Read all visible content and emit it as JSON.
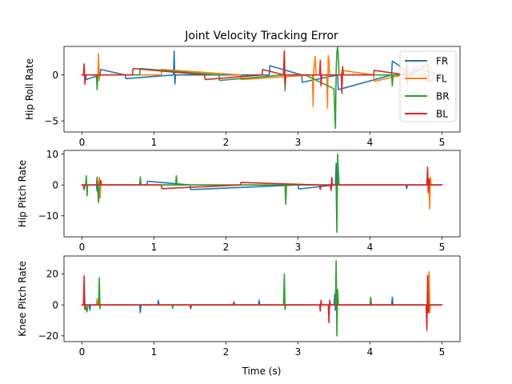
{
  "chart_data": {
    "type": "line",
    "title": "Joint Velocity Tracking Error",
    "xlabel": "Time (s)",
    "xlim": [
      -0.25,
      5.25
    ],
    "xticks": [
      0,
      1,
      2,
      3,
      4,
      5
    ],
    "legend": {
      "placement": "top-right",
      "entries": [
        "FR",
        "FL",
        "BR",
        "BL"
      ]
    },
    "colors": {
      "FR": "#1f77b4",
      "FL": "#ff7f0e",
      "BR": "#2ca02c",
      "BL": "#d62728"
    },
    "panels": [
      {
        "ylabel": "Hip Roll Rate",
        "ylim": [
          -6.2,
          3.1
        ],
        "yticks": [
          -5,
          0
        ],
        "series": [
          {
            "name": "FR",
            "x": [
              0,
              0.05,
              0.06,
              0.25,
              0.26,
              0.6,
              0.61,
              1.27,
              1.28,
              1.29,
              1.3,
              2.6,
              2.61,
              3.05,
              3.06,
              3.55,
              3.56,
              4.3,
              4.31,
              4.6,
              4.61,
              5
            ],
            "y": [
              0,
              0,
              -0.5,
              0,
              0.6,
              0,
              -0.4,
              0,
              2.6,
              -1.0,
              0,
              0,
              1.0,
              0,
              -0.8,
              0,
              -1.6,
              0,
              1.5,
              0,
              0.8,
              0
            ]
          },
          {
            "name": "FL",
            "x": [
              0,
              0.22,
              0.23,
              0.24,
              0.25,
              1.1,
              1.11,
              2.2,
              2.21,
              3.2,
              3.21,
              3.22,
              3.24,
              3.25,
              3.4,
              3.41,
              3.42,
              3.43,
              3.44,
              3.6,
              3.61,
              4.05,
              4.06,
              4.45,
              4.46,
              4.5,
              4.6,
              4.8,
              4.81,
              5
            ],
            "y": [
              0,
              0,
              2.3,
              -0.6,
              0,
              0,
              0.6,
              0,
              -0.5,
              0,
              -3.4,
              0.6,
              2.0,
              0,
              0,
              -3.6,
              2.1,
              1.6,
              0,
              0,
              0.5,
              0,
              -0.7,
              0,
              0.5,
              -0.5,
              0.6,
              0,
              -0.8,
              0
            ]
          },
          {
            "name": "BR",
            "x": [
              0,
              0.2,
              0.21,
              0.22,
              0.8,
              0.81,
              1.9,
              1.91,
              2.8,
              2.81,
              2.82,
              2.83,
              2.84,
              3.1,
              3.5,
              3.51,
              3.52,
              3.53,
              3.54,
              3.55,
              3.56,
              3.57,
              3.6,
              4.3,
              4.31,
              4.32,
              5
            ],
            "y": [
              0,
              0,
              -1.6,
              0,
              0,
              0.7,
              0,
              -0.6,
              0,
              2.4,
              -1.7,
              0,
              0,
              0,
              -1.5,
              -4.0,
              -5.8,
              0.5,
              2.5,
              3.0,
              2.0,
              0,
              0,
              0,
              -1.2,
              0,
              0
            ]
          },
          {
            "name": "BL",
            "x": [
              0,
              0.02,
              0.03,
              0.04,
              0.05,
              0.7,
              0.71,
              1.7,
              1.71,
              2.5,
              2.51,
              2.8,
              2.81,
              2.82,
              2.83,
              3.3,
              3.31,
              3.32,
              3.33,
              3.6,
              3.61,
              3.62,
              3.63,
              4.05,
              4.06,
              4.5,
              4.51,
              4.52,
              4.53,
              4.55,
              4.81,
              4.82,
              5
            ],
            "y": [
              0,
              0,
              1.2,
              -1.0,
              0,
              0,
              0.7,
              0,
              -0.5,
              0,
              0.6,
              0,
              2.6,
              -1.2,
              0,
              0,
              1.6,
              -1.2,
              0,
              0,
              -2.0,
              0.9,
              0,
              0,
              0.5,
              0,
              1.9,
              -1.0,
              0,
              0,
              1.2,
              -0.7,
              0
            ]
          }
        ]
      },
      {
        "ylabel": "Hip Pitch Rate",
        "ylim": [
          -16.8,
          11.2
        ],
        "yticks": [
          -10,
          0,
          10
        ],
        "series": [
          {
            "name": "FR",
            "x": [
              0,
              0.2,
              0.21,
              0.22,
              0.3,
              0.9,
              0.91,
              1.5,
              1.51,
              3.0,
              3.01,
              3.52,
              3.53,
              3.54,
              3.55,
              3.56,
              4.5,
              4.51,
              4.52,
              5
            ],
            "y": [
              0,
              0,
              -2.0,
              0,
              0,
              0,
              1.2,
              0,
              -1.5,
              0,
              -1.3,
              0,
              7.0,
              -4.0,
              2.0,
              0,
              0,
              -1.2,
              0,
              0
            ]
          },
          {
            "name": "FL",
            "x": [
              0,
              0.23,
              0.24,
              0.25,
              0.26,
              4.82,
              4.83,
              4.84,
              4.85,
              5
            ],
            "y": [
              0,
              0,
              2.4,
              -4.3,
              0,
              0,
              -7.8,
              2.5,
              0,
              0
            ]
          },
          {
            "name": "BR",
            "x": [
              0,
              0.05,
              0.06,
              0.07,
              0.08,
              0.2,
              0.21,
              0.22,
              0.23,
              0.24,
              0.8,
              0.81,
              0.82,
              1.3,
              1.31,
              1.32,
              2.82,
              2.83,
              2.84,
              3.53,
              3.54,
              3.55,
              3.56,
              3.57,
              5
            ],
            "y": [
              0,
              0,
              3.0,
              -3.5,
              0,
              0,
              2.5,
              -1.5,
              -5.7,
              0,
              0,
              2.6,
              0,
              0,
              3.0,
              0,
              0,
              -6.3,
              0,
              0,
              -15.3,
              10.0,
              5.0,
              0,
              0
            ]
          },
          {
            "name": "BL",
            "x": [
              0,
              0.02,
              0.03,
              0.04,
              0.25,
              0.26,
              0.27,
              1.1,
              1.11,
              2.2,
              2.21,
              3.3,
              3.31,
              3.32,
              3.45,
              3.46,
              3.47,
              3.48,
              4.79,
              4.8,
              4.81,
              4.82,
              4.83,
              5
            ],
            "y": [
              0,
              0,
              -1.5,
              0,
              0,
              1.5,
              0,
              0,
              -1.2,
              0,
              0.8,
              0,
              -1.5,
              0,
              0,
              -1.8,
              2.4,
              0,
              0,
              5.8,
              -2.5,
              2.0,
              0,
              0
            ]
          }
        ]
      },
      {
        "ylabel": "Knee Pitch Rate",
        "ylim": [
          -23.7,
          31.6
        ],
        "yticks": [
          -20,
          0,
          20
        ],
        "series": [
          {
            "name": "FR",
            "x": [
              0,
              0.1,
              0.11,
              0.12,
              0.8,
              0.81,
              0.82,
              1.05,
              1.06,
              1.07,
              2.45,
              2.46,
              2.47,
              3.5,
              3.51,
              3.52,
              3.53,
              4.3,
              4.31,
              4.32,
              4.8,
              4.81,
              4.82,
              4.83,
              5
            ],
            "y": [
              0,
              0,
              -3.5,
              0,
              0,
              -5.0,
              0,
              0,
              3.0,
              0,
              0,
              3.0,
              0,
              0,
              7.0,
              -3.5,
              0,
              0,
              5.0,
              0,
              0,
              -5.0,
              20.0,
              0,
              0
            ]
          },
          {
            "name": "FL",
            "x": [
              0,
              0.2,
              0.21,
              0.22,
              4.81,
              4.82,
              4.83,
              4.84,
              5
            ],
            "y": [
              0,
              0,
              4.0,
              0,
              0,
              21.5,
              -5.0,
              0,
              0
            ]
          },
          {
            "name": "BR",
            "x": [
              0,
              0.05,
              0.06,
              0.07,
              0.08,
              0.23,
              0.24,
              0.25,
              0.26,
              1.25,
              1.26,
              1.27,
              2.8,
              2.81,
              2.82,
              2.83,
              3.52,
              3.53,
              3.54,
              3.55,
              3.56,
              3.57,
              4.0,
              4.01,
              4.02,
              5
            ],
            "y": [
              0,
              0,
              -3.0,
              -4.5,
              0,
              0,
              17.5,
              -2.5,
              0,
              0,
              -2.0,
              0,
              0,
              20.0,
              -3.0,
              0,
              0,
              28.5,
              -20.0,
              10.0,
              0,
              0,
              0,
              5.0,
              0,
              0
            ]
          },
          {
            "name": "BL",
            "x": [
              0,
              0.02,
              0.03,
              0.04,
              0.05,
              1.5,
              1.51,
              1.52,
              2.1,
              2.11,
              2.12,
              3.3,
              3.31,
              3.32,
              3.33,
              3.42,
              3.43,
              3.44,
              3.45,
              4.78,
              4.79,
              4.8,
              4.81,
              4.82,
              5
            ],
            "y": [
              0,
              0,
              18.8,
              -3.0,
              0,
              0,
              -2.5,
              0,
              0,
              2.0,
              0,
              0,
              -4.0,
              3.0,
              0,
              0,
              -11.5,
              3.0,
              0,
              0,
              -16.5,
              19.0,
              -5.0,
              0,
              0
            ]
          }
        ]
      }
    ]
  }
}
